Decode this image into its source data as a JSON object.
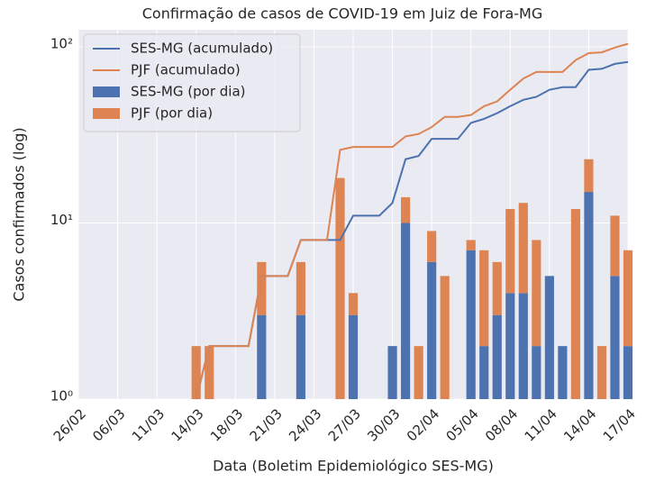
{
  "chart_data": {
    "type": "bar",
    "title": "Confirmação de casos de COVID-19 em Juiz de Fora-MG",
    "x_label": "Data (Boletim Epidemiológico SES-MG)",
    "y_label": "Casos confirmados (log)",
    "log_y": true,
    "grid": true,
    "stacked": true,
    "legend": "upper left",
    "categories": [
      "26/02",
      null,
      null,
      "06/03",
      null,
      null,
      "11/03",
      null,
      null,
      "14/03",
      null,
      null,
      "18/03",
      null,
      null,
      "21/03",
      null,
      null,
      "24/03",
      null,
      null,
      "27/03",
      null,
      null,
      "30/03",
      null,
      null,
      "02/04",
      null,
      null,
      "05/04",
      null,
      null,
      "08/04",
      null,
      null,
      "11/04",
      null,
      null,
      "14/04",
      null,
      null,
      "17/04"
    ],
    "ylim": [
      1,
      125
    ],
    "yticks": [
      {
        "value": 1,
        "label": "10⁰"
      },
      {
        "value": 10,
        "label": "10¹"
      },
      {
        "value": 100,
        "label": "10²"
      }
    ],
    "series": [
      {
        "name": "SES-MG (acumulado)",
        "type": "line",
        "color": "#4c72b0",
        "values": [
          null,
          null,
          null,
          null,
          null,
          null,
          null,
          null,
          null,
          1,
          2,
          2,
          2,
          2,
          5,
          5,
          5,
          8,
          8,
          8,
          8,
          11,
          11,
          11,
          13,
          23,
          24,
          30,
          30,
          30,
          37,
          39,
          42,
          46,
          50,
          52,
          57,
          59,
          59,
          74,
          75,
          80,
          82
        ]
      },
      {
        "name": "PJF (acumulado)",
        "type": "line",
        "color": "#dd8452",
        "values": [
          null,
          null,
          null,
          null,
          null,
          null,
          null,
          null,
          null,
          1,
          2,
          2,
          2,
          2,
          5,
          5,
          5,
          8,
          8,
          8,
          26,
          27,
          27,
          27,
          27,
          31,
          32,
          35,
          40,
          40,
          41,
          46,
          49,
          57,
          66,
          72,
          72,
          72,
          84,
          92,
          93,
          99,
          104
        ]
      },
      {
        "name": "SES-MG (por dia)",
        "type": "bar",
        "color": "#4c72b0",
        "values": [
          0,
          0,
          0,
          0,
          0,
          0,
          0,
          0,
          0,
          0,
          0,
          0,
          0,
          0,
          3,
          0,
          0,
          3,
          0,
          0,
          0,
          3,
          0,
          0,
          2,
          10,
          0,
          6,
          0,
          0,
          7,
          2,
          3,
          4,
          4,
          2,
          5,
          2,
          0,
          15,
          0,
          5,
          2
        ]
      },
      {
        "name": "PJF (por dia)",
        "type": "bar",
        "color": "#dd8452",
        "values": [
          0,
          0,
          0,
          0,
          0,
          0,
          0,
          0,
          0,
          2,
          2,
          0,
          0,
          0,
          3,
          0,
          0,
          3,
          0,
          0,
          18,
          1,
          0,
          0,
          0,
          4,
          2,
          3,
          5,
          0,
          1,
          5,
          3,
          8,
          9,
          6,
          0,
          0,
          12,
          8,
          2,
          6,
          5
        ]
      }
    ]
  }
}
